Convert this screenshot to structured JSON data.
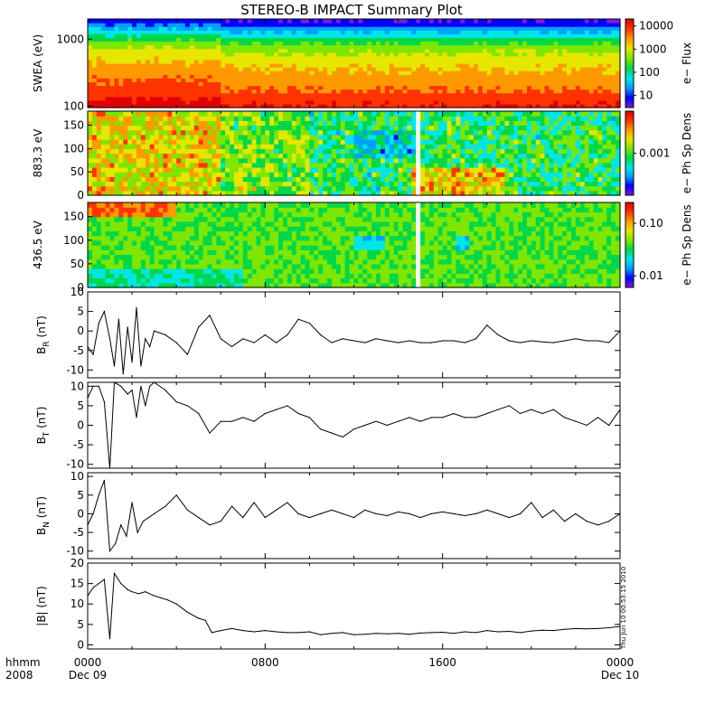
{
  "title": "STEREO-B IMPACT Summary Plot",
  "timestamp": "Thu Jun 10 00:53:15 2010",
  "x_axis": {
    "corner_label_1": "hhmm",
    "corner_label_2": "2008",
    "ticks": [
      {
        "hour": 0,
        "time": "0000",
        "date": "Dec 09"
      },
      {
        "hour": 8,
        "time": "0800",
        "date": ""
      },
      {
        "hour": 16,
        "time": "1600",
        "date": ""
      },
      {
        "hour": 24,
        "time": "0000",
        "date": "Dec 10"
      }
    ],
    "range_hours": [
      0,
      24
    ]
  },
  "colors": {
    "colormap": [
      "#7a1fd6",
      "#0000ff",
      "#00a0ff",
      "#00e6e6",
      "#00d84a",
      "#7ee600",
      "#e6e600",
      "#ff9900",
      "#ff3300",
      "#e00000"
    ],
    "missing": "#ffffff",
    "line": "#000000"
  },
  "chart_data": [
    {
      "type": "heatmap",
      "ylabel": "SWEA (eV)",
      "yscale": "log",
      "ylim": [
        95,
        2000
      ],
      "yticks": [
        "100",
        "1000"
      ],
      "colorbar": {
        "label": "e− Flux",
        "scale": "log",
        "range": [
          3,
          20000
        ],
        "ticks": [
          "10",
          "100",
          "1000",
          "10000"
        ]
      },
      "description_profile": {
        "energy_eV": [
          100,
          160,
          300,
          700,
          1200,
          1700,
          2000
        ],
        "flux": [
          15000,
          6000,
          2500,
          600,
          60,
          10,
          5
        ]
      }
    },
    {
      "type": "heatmap",
      "ylabel": "883.3 eV",
      "ylim": [
        0,
        180
      ],
      "yticks": [
        "0",
        "50",
        "100",
        "150"
      ],
      "colorbar": {
        "label": "e− Ph Sp Dens",
        "scale": "log",
        "range": [
          0.0001,
          0.01
        ],
        "ticks": [
          "0.001"
        ]
      },
      "missing_interval_hours": [
        14.75,
        14.95
      ]
    },
    {
      "type": "heatmap",
      "ylabel": "436.5 eV",
      "ylim": [
        0,
        180
      ],
      "yticks": [
        "0",
        "50",
        "100",
        "150"
      ],
      "colorbar": {
        "label": "e− Ph Sp Dens",
        "scale": "log",
        "range": [
          0.006,
          0.25
        ],
        "ticks": [
          "0.01",
          "0.10"
        ]
      },
      "missing_interval_hours": [
        14.75,
        14.95
      ]
    },
    {
      "type": "line",
      "ylabel_main": "B",
      "ylabel_sub": "R",
      "ylabel_unit": " (nT)",
      "ylim": [
        -12,
        10
      ],
      "yticks": [
        -10,
        -5,
        0,
        5,
        10
      ],
      "x_hours": [
        0,
        0.25,
        0.5,
        0.75,
        1,
        1.2,
        1.4,
        1.6,
        1.8,
        2,
        2.2,
        2.4,
        2.6,
        2.8,
        3,
        3.5,
        4,
        4.5,
        5,
        5.5,
        6,
        6.5,
        7,
        7.5,
        8,
        8.5,
        9,
        9.5,
        10,
        10.5,
        11,
        11.5,
        12,
        12.5,
        13,
        13.5,
        14,
        14.5,
        15,
        15.5,
        16,
        16.5,
        17,
        17.5,
        18,
        18.5,
        19,
        19.5,
        20,
        20.5,
        21,
        21.5,
        22,
        22.5,
        23,
        23.5,
        24
      ],
      "values": [
        -4,
        -6,
        2,
        5,
        -2,
        -9,
        3,
        -11,
        1,
        -8,
        6,
        -9,
        -2,
        -4,
        0,
        -1,
        -3,
        -6,
        1,
        4,
        -2,
        -4,
        -2,
        -3,
        -1,
        -3,
        -1,
        3,
        2,
        -1,
        -3,
        -2,
        -2.5,
        -3,
        -2,
        -2.5,
        -3,
        -2.5,
        -3,
        -3,
        -2.5,
        -2.5,
        -3,
        -2,
        1.5,
        -1,
        -2.5,
        -3,
        -2.5,
        -2.8,
        -3,
        -2.5,
        -2,
        -2.5,
        -2.5,
        -3,
        0
      ]
    },
    {
      "type": "line",
      "ylabel_main": "B",
      "ylabel_sub": "T",
      "ylabel_unit": " (nT)",
      "ylim": [
        -11,
        11
      ],
      "yticks": [
        -10,
        -5,
        0,
        5,
        10
      ],
      "x_hours": [
        0,
        0.25,
        0.5,
        0.75,
        1,
        1.2,
        1.5,
        1.8,
        2,
        2.2,
        2.4,
        2.6,
        2.8,
        3,
        3.5,
        4,
        4.5,
        5,
        5.5,
        6,
        6.5,
        7,
        7.5,
        8,
        8.5,
        9,
        9.5,
        10,
        10.5,
        11,
        11.5,
        12,
        12.5,
        13,
        13.5,
        14,
        14.5,
        15,
        15.5,
        16,
        16.5,
        17,
        17.5,
        18,
        18.5,
        19,
        19.5,
        20,
        20.5,
        21,
        21.5,
        22,
        22.5,
        23,
        23.5,
        24
      ],
      "values": [
        7,
        10,
        10,
        6,
        -11,
        11,
        10,
        8,
        9,
        2,
        10,
        5,
        10,
        11,
        9,
        6,
        5,
        3,
        -2,
        1,
        1,
        2,
        1,
        3,
        4,
        5,
        3,
        2,
        -1,
        -2,
        -3,
        -1,
        0,
        1,
        0,
        1,
        2,
        1,
        2,
        2,
        3,
        2,
        2,
        3,
        4,
        5,
        3,
        4,
        3,
        4,
        2,
        1,
        0,
        2,
        0,
        4
      ]
    },
    {
      "type": "line",
      "ylabel_main": "B",
      "ylabel_sub": "N",
      "ylabel_unit": " (nT)",
      "ylim": [
        -12,
        11
      ],
      "yticks": [
        -10,
        -5,
        0,
        5,
        10
      ],
      "x_hours": [
        0,
        0.25,
        0.5,
        0.75,
        1,
        1.25,
        1.5,
        1.75,
        2,
        2.25,
        2.5,
        2.75,
        3,
        3.5,
        4,
        4.5,
        5,
        5.5,
        6,
        6.5,
        7,
        7.5,
        8,
        8.5,
        9,
        9.5,
        10,
        10.5,
        11,
        11.5,
        12,
        12.5,
        13,
        13.5,
        14,
        14.5,
        15,
        15.5,
        16,
        16.5,
        17,
        17.5,
        18,
        18.5,
        19,
        19.5,
        20,
        20.5,
        21,
        21.5,
        22,
        22.5,
        23,
        23.5,
        24
      ],
      "values": [
        -3,
        0,
        5,
        9,
        -10,
        -8,
        -3,
        -6,
        3,
        -5,
        -2,
        -1,
        0,
        2,
        5,
        1,
        -1,
        -3,
        -2,
        2,
        -1,
        3,
        -1,
        1,
        3,
        0,
        -1,
        0,
        1,
        0,
        -1,
        1,
        0,
        -0.5,
        0.5,
        0,
        -1,
        0,
        0.5,
        0,
        -0.5,
        0,
        1,
        0,
        -1,
        0,
        3,
        -1,
        1,
        -2,
        0,
        -2,
        -3,
        -2,
        0
      ]
    },
    {
      "type": "line",
      "ylabel_main": "|B|",
      "ylabel_sub": "",
      "ylabel_unit": " (nT)",
      "ylim": [
        -1,
        20
      ],
      "yticks": [
        0,
        5,
        10,
        15,
        20
      ],
      "x_hours": [
        0,
        0.25,
        0.5,
        0.75,
        1,
        1.2,
        1.5,
        1.8,
        2,
        2.3,
        2.6,
        3,
        3.3,
        3.6,
        4,
        4.5,
        5,
        5.3,
        5.6,
        6,
        6.5,
        7,
        7.5,
        8,
        8.5,
        9,
        9.5,
        10,
        10.5,
        11,
        11.5,
        12,
        12.5,
        13,
        13.5,
        14,
        14.5,
        15,
        15.5,
        16,
        16.5,
        17,
        17.5,
        18,
        18.5,
        19,
        19.5,
        20,
        20.5,
        21,
        21.5,
        22,
        22.5,
        23,
        23.5,
        24
      ],
      "values": [
        12,
        14,
        15,
        16,
        1.5,
        17.5,
        15,
        13.5,
        13,
        12.5,
        13,
        12,
        11.5,
        11,
        10,
        8,
        6.5,
        6,
        3,
        3.5,
        4,
        3.5,
        3.2,
        3.5,
        3.2,
        3,
        3,
        3.2,
        2.5,
        2.8,
        3,
        2.5,
        2.6,
        2.8,
        2.7,
        2.8,
        2.6,
        2.9,
        3,
        3.1,
        2.8,
        3.2,
        3,
        3.5,
        3.2,
        3.3,
        3,
        3.4,
        3.6,
        3.5,
        3.8,
        4,
        3.9,
        4,
        4.2,
        4.5
      ]
    }
  ]
}
